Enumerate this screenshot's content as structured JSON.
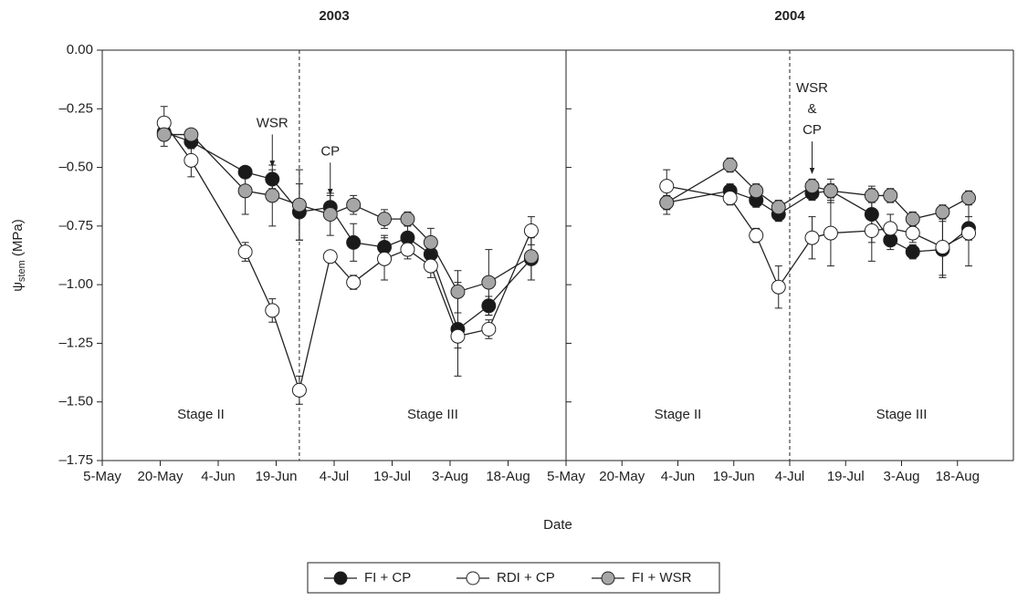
{
  "chart_data": [
    {
      "type": "line",
      "title": "2003",
      "y_label": {
        "symbol": "ψ",
        "subscript": "stem",
        "unit": " (MPa)"
      },
      "x_label": "Date",
      "x": [
        "2003-05-21",
        "2003-05-28",
        "2003-06-11",
        "2003-06-18",
        "2003-06-25",
        "2003-07-03",
        "2003-07-09",
        "2003-07-17",
        "2003-07-23",
        "2003-07-29",
        "2003-08-05",
        "2003-08-13",
        "2003-08-24"
      ],
      "xlim": [
        "2003-05-05",
        "2003-09-02"
      ],
      "xticks": [
        {
          "value": "2003-05-05",
          "label": "5-May"
        },
        {
          "value": "2003-05-20",
          "label": "20-May"
        },
        {
          "value": "2003-06-04",
          "label": "4-Jun"
        },
        {
          "value": "2003-06-19",
          "label": "19-Jun"
        },
        {
          "value": "2003-07-04",
          "label": "4-Jul"
        },
        {
          "value": "2003-07-19",
          "label": "19-Jul"
        },
        {
          "value": "2003-08-03",
          "label": "3-Aug"
        },
        {
          "value": "2003-08-18",
          "label": "18-Aug"
        }
      ],
      "ylim": [
        -1.75,
        0
      ],
      "yticks": [
        {
          "value": 0,
          "label": "0.00"
        },
        {
          "value": -0.25,
          "label": "–0.25"
        },
        {
          "value": -0.5,
          "label": "–0.50"
        },
        {
          "value": -0.75,
          "label": "–0.75"
        },
        {
          "value": -1,
          "label": "–1.00"
        },
        {
          "value": -1.25,
          "label": "–1.25"
        },
        {
          "value": -1.5,
          "label": "–1.50"
        },
        {
          "value": -1.75,
          "label": "–1.75"
        }
      ],
      "stage_boundary": "2003-06-25",
      "stages": [
        "Stage II",
        "Stage III"
      ],
      "events": [
        {
          "label": [
            "WSR"
          ],
          "date": "2003-06-18"
        },
        {
          "label": [
            "CP"
          ],
          "date": "2003-07-03"
        }
      ],
      "series": [
        {
          "name": "FI + CP",
          "color": "#1a1a1a",
          "values": [
            -0.35,
            -0.39,
            -0.52,
            -0.55,
            -0.69,
            -0.67,
            -0.82,
            -0.84,
            -0.8,
            -0.87,
            -1.19,
            -1.09,
            -0.89
          ],
          "errors": [
            0.03,
            0.03,
            0.02,
            0.04,
            0.12,
            0.05,
            0.08,
            0.05,
            0.05,
            0.05,
            0.2,
            0.04,
            0.09
          ]
        },
        {
          "name": "RDI + CP",
          "color": "#ffffff",
          "values": [
            -0.31,
            -0.47,
            -0.86,
            -1.11,
            -1.45,
            -0.88,
            -0.99,
            -0.89,
            -0.85,
            -0.92,
            -1.22,
            -1.19,
            -0.77
          ],
          "errors": [
            0.07,
            0.07,
            0.04,
            0.05,
            0.06,
            0.02,
            0.03,
            0.09,
            0.04,
            0.05,
            0.05,
            0.04,
            0.06
          ]
        },
        {
          "name": "FI + WSR",
          "color": "#a6a6a6",
          "values": [
            -0.36,
            -0.36,
            -0.6,
            -0.62,
            -0.66,
            -0.7,
            -0.66,
            -0.72,
            -0.72,
            -0.82,
            -1.03,
            -0.99,
            -0.88
          ],
          "errors": [
            0.05,
            0.02,
            0.1,
            0.13,
            0.15,
            0.09,
            0.04,
            0.04,
            0.03,
            0.06,
            0.09,
            0.14,
            0.1
          ]
        }
      ]
    },
    {
      "type": "line",
      "title": "2004",
      "x": [
        "2004-06-01",
        "2004-06-18",
        "2004-06-25",
        "2004-07-01",
        "2004-07-10",
        "2004-07-15",
        "2004-07-26",
        "2004-07-31",
        "2004-08-06",
        "2004-08-14",
        "2004-08-21"
      ],
      "xlim": [
        "2004-05-05",
        "2004-09-02"
      ],
      "xticks": [
        {
          "value": "2004-05-05",
          "label": "5-May"
        },
        {
          "value": "2004-05-20",
          "label": "20-May"
        },
        {
          "value": "2004-06-04",
          "label": "4-Jun"
        },
        {
          "value": "2004-06-19",
          "label": "19-Jun"
        },
        {
          "value": "2004-07-04",
          "label": "4-Jul"
        },
        {
          "value": "2004-07-19",
          "label": "19-Jul"
        },
        {
          "value": "2004-08-03",
          "label": "3-Aug"
        },
        {
          "value": "2004-08-18",
          "label": "18-Aug"
        }
      ],
      "ylim": [
        -1.75,
        0
      ],
      "yticks": [
        0,
        -0.25,
        -0.5,
        -0.75,
        -1,
        -1.25,
        -1.5,
        -1.75
      ],
      "stage_boundary": "2004-07-04",
      "stages": [
        "Stage II",
        "Stage III"
      ],
      "events": [
        {
          "label": [
            "WSR",
            "&",
            "CP"
          ],
          "date": "2004-07-10"
        }
      ],
      "series": [
        {
          "color": "#1a1a1a",
          "values": [
            -0.65,
            -0.6,
            -0.64,
            -0.7,
            -0.61,
            -0.6,
            -0.7,
            -0.81,
            -0.86,
            -0.85,
            -0.76
          ],
          "errors": [
            0.03,
            0.03,
            0.03,
            0.03,
            0.03,
            0.03,
            0.12,
            0.04,
            0.03,
            0.12,
            0.05
          ]
        },
        {
          "color": "#ffffff",
          "values": [
            -0.58,
            -0.63,
            -0.79,
            -1.01,
            -0.8,
            -0.78,
            -0.77,
            -0.76,
            -0.78,
            -0.84,
            -0.78
          ],
          "errors": [
            0.07,
            0.03,
            0.03,
            0.09,
            0.09,
            0.14,
            0.13,
            0.06,
            0.04,
            0.12,
            0.14
          ]
        },
        {
          "color": "#a6a6a6",
          "values": [
            -0.65,
            -0.49,
            -0.6,
            -0.67,
            -0.58,
            -0.6,
            -0.62,
            -0.62,
            -0.72,
            -0.69,
            -0.63
          ],
          "errors": [
            0.05,
            0.03,
            0.03,
            0.03,
            0.03,
            0.05,
            0.03,
            0.03,
            0.03,
            0.03,
            0.03
          ]
        }
      ]
    }
  ]
}
